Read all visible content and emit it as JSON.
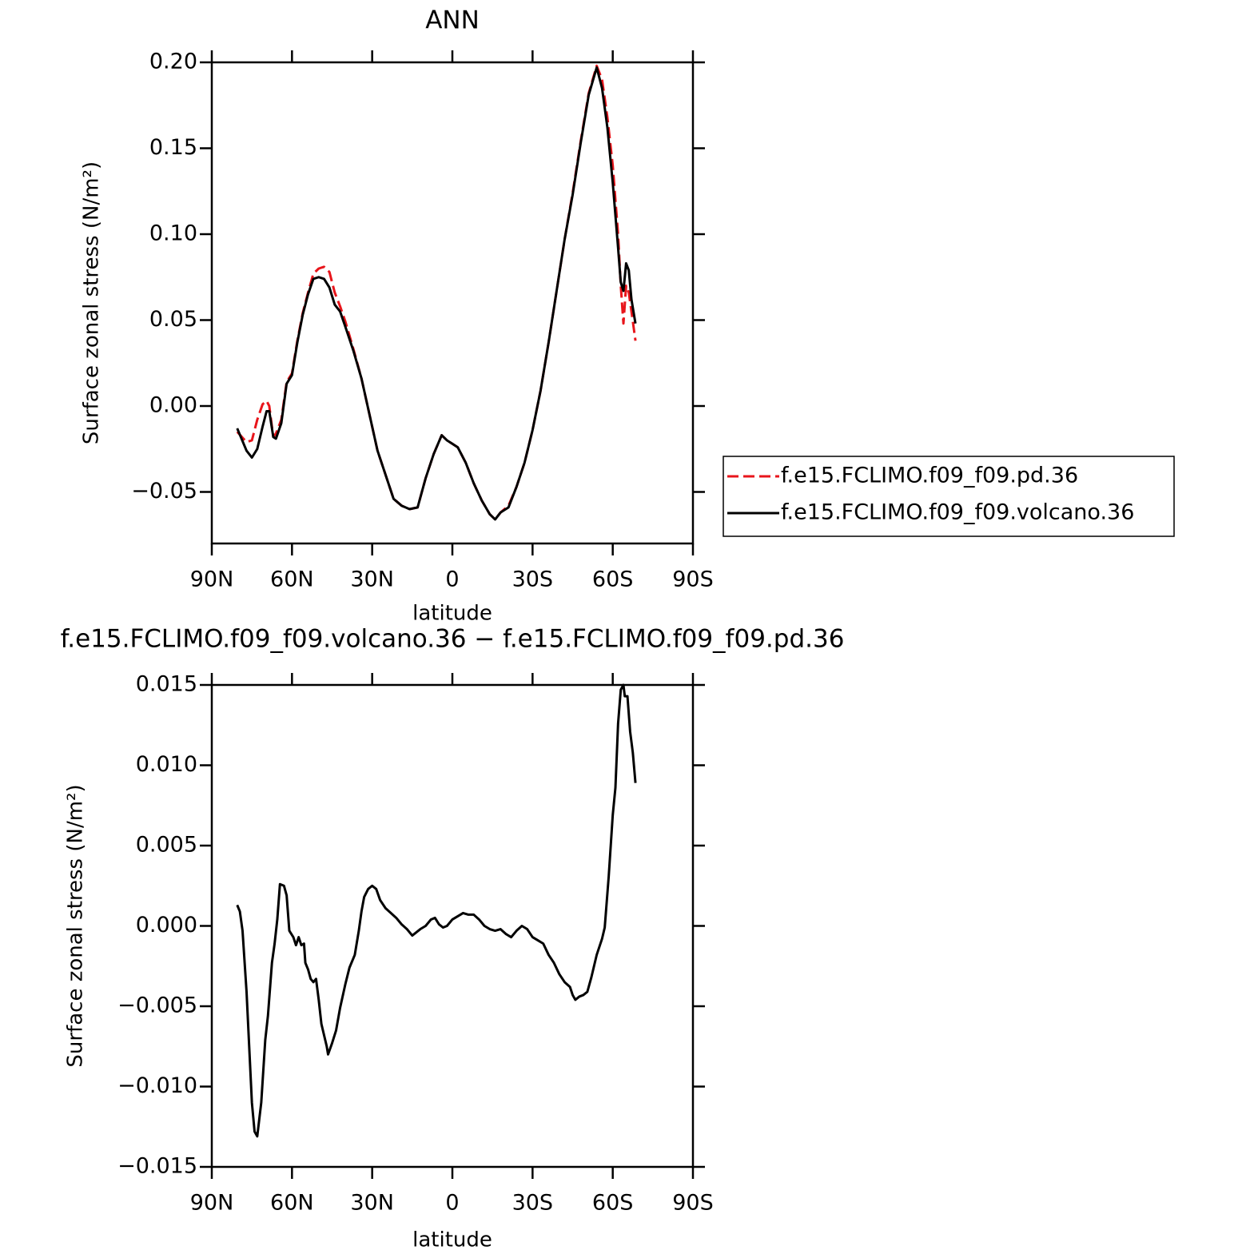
{
  "chart_data": [
    {
      "type": "line",
      "title": "ANN",
      "x_label": "latitude",
      "y_label": "Surface zonal stress (N/m²)",
      "x": [
        80.5,
        77,
        75,
        73,
        71,
        69.5,
        68.5,
        67,
        66,
        64,
        62,
        60,
        58,
        56,
        54,
        52,
        50,
        48,
        46,
        44,
        42,
        40,
        37,
        34,
        31,
        28,
        25,
        22,
        19,
        16,
        13,
        10,
        7,
        4,
        2,
        0,
        -2,
        -5,
        -8,
        -11,
        -14,
        -16,
        -18,
        -21,
        -24,
        -27,
        -30,
        -33,
        -36,
        -39,
        -42,
        -45,
        -48,
        -51,
        -54,
        -56,
        -58,
        -60,
        -62,
        -63,
        -64,
        -65,
        -66,
        -67,
        -68.5
      ],
      "series": [
        {
          "name": "f.e15.FCLIMO.f09_f09.pd.36",
          "color": "#e8151b",
          "style": "dashed",
          "values": [
            -0.015,
            -0.021,
            -0.02,
            -0.008,
            0.001,
            0.003,
            0.0,
            -0.018,
            -0.016,
            -0.008,
            0.014,
            0.019,
            0.038,
            0.054,
            0.066,
            0.077,
            0.08,
            0.081,
            0.078,
            0.066,
            0.058,
            0.049,
            0.033,
            0.016,
            -0.005,
            -0.026,
            -0.04,
            -0.054,
            -0.058,
            -0.06,
            -0.059,
            -0.042,
            -0.028,
            -0.017,
            -0.02,
            -0.022,
            -0.024,
            -0.033,
            -0.045,
            -0.055,
            -0.063,
            -0.066,
            -0.062,
            -0.058,
            -0.047,
            -0.033,
            -0.014,
            0.009,
            0.037,
            0.067,
            0.097,
            0.124,
            0.154,
            0.182,
            0.198,
            0.19,
            0.168,
            0.14,
            0.1,
            0.07,
            0.048,
            0.07,
            0.066,
            0.055,
            0.038
          ]
        },
        {
          "name": "f.e15.FCLIMO.f09_f09.volcano.36",
          "color": "#000000",
          "style": "solid",
          "values": [
            -0.013,
            -0.026,
            -0.03,
            -0.025,
            -0.012,
            -0.003,
            -0.003,
            -0.018,
            -0.019,
            -0.01,
            0.013,
            0.018,
            0.037,
            0.053,
            0.065,
            0.074,
            0.075,
            0.074,
            0.069,
            0.059,
            0.055,
            0.046,
            0.032,
            0.016,
            -0.005,
            -0.026,
            -0.04,
            -0.054,
            -0.058,
            -0.06,
            -0.059,
            -0.042,
            -0.028,
            -0.017,
            -0.02,
            -0.022,
            -0.024,
            -0.033,
            -0.045,
            -0.055,
            -0.063,
            -0.066,
            -0.062,
            -0.059,
            -0.047,
            -0.033,
            -0.014,
            0.009,
            0.037,
            0.067,
            0.097,
            0.123,
            0.153,
            0.181,
            0.197,
            0.185,
            0.162,
            0.13,
            0.092,
            0.072,
            0.067,
            0.083,
            0.079,
            0.062,
            0.048
          ]
        }
      ],
      "xlim": [
        90,
        -90
      ],
      "xticks": [
        {
          "value": 90,
          "label": "90N"
        },
        {
          "value": 60,
          "label": "60N"
        },
        {
          "value": 30,
          "label": "30N"
        },
        0,
        {
          "value": -30,
          "label": "30S"
        },
        {
          "value": -60,
          "label": "60S"
        },
        {
          "value": -90,
          "label": "90S"
        }
      ],
      "ylim": [
        -0.08,
        0.2
      ],
      "yticks": [
        {
          "value": 0.2,
          "label": "0.20"
        },
        {
          "value": 0.15,
          "label": "0.15"
        },
        {
          "value": 0.1,
          "label": "0.10"
        },
        {
          "value": 0.05,
          "label": "0.05"
        },
        {
          "value": 0,
          "label": "0.00"
        },
        {
          "value": -0.05,
          "label": "−0.05"
        }
      ],
      "legend": "right"
    },
    {
      "type": "line",
      "title": "f.e15.FCLIMO.f09_f09.volcano.36 − f.e15.FCLIMO.f09_f09.pd.36",
      "x_label": "latitude",
      "y_label": "Surface zonal stress (N/m²)",
      "x": [
        80.5,
        79.5,
        78.5,
        77,
        75,
        74,
        73,
        71.5,
        70,
        69,
        67.5,
        66.5,
        65.5,
        64.5,
        63,
        62,
        61,
        59.5,
        58.5,
        57.5,
        56.5,
        55.5,
        55,
        54,
        53,
        52,
        51,
        50,
        49,
        47,
        46.5,
        45,
        43.5,
        42,
        40,
        38.5,
        36.5,
        35,
        34,
        33,
        31.5,
        30,
        28.5,
        27,
        25,
        23,
        21,
        19,
        17,
        15,
        13.5,
        12,
        10,
        8,
        6.5,
        5,
        3.5,
        2,
        0,
        -2,
        -4,
        -6,
        -8,
        -10,
        -12,
        -14,
        -16,
        -18,
        -20,
        -22,
        -24,
        -26,
        -28,
        -30,
        -32,
        -34,
        -36,
        -38,
        -40,
        -42,
        -44,
        -45,
        -46,
        -47.5,
        -49,
        -50.5,
        -52,
        -54,
        -56,
        -57,
        -58.5,
        -60,
        -61,
        -62,
        -63,
        -64,
        -64.5,
        -65.5,
        -66.5,
        -67.5,
        -68.5
      ],
      "series": [
        {
          "color": "#000000",
          "style": "solid",
          "values": [
            0.0013,
            0.0009,
            -0.0003,
            -0.0041,
            -0.011,
            -0.0128,
            -0.0131,
            -0.011,
            -0.0071,
            -0.0056,
            -0.0023,
            -0.0011,
            0.0004,
            0.0026,
            0.0025,
            0.0019,
            -0.0003,
            -0.0007,
            -0.0012,
            -0.0007,
            -0.0012,
            -0.0011,
            -0.0023,
            -0.0027,
            -0.0033,
            -0.0035,
            -0.0033,
            -0.0046,
            -0.0061,
            -0.0075,
            -0.008,
            -0.0073,
            -0.0065,
            -0.0051,
            -0.0036,
            -0.0026,
            -0.0018,
            -0.0003,
            0.0009,
            0.0018,
            0.0023,
            0.0025,
            0.0023,
            0.0016,
            0.0011,
            0.0008,
            0.0005,
            0.0001,
            -0.0002,
            -0.0006,
            -0.0004,
            -0.0002,
            0,
            0.0004,
            0.0005,
            0.0001,
            -0.0001,
            0,
            0.0004,
            0.0006,
            0.0008,
            0.0007,
            0.0007,
            0.0004,
            0,
            -0.0002,
            -0.0003,
            -0.0002,
            -0.0005,
            -0.0007,
            -0.0003,
            0,
            -0.0002,
            -0.0007,
            -0.0009,
            -0.0011,
            -0.0018,
            -0.0023,
            -0.003,
            -0.0035,
            -0.0038,
            -0.0043,
            -0.0046,
            -0.0044,
            -0.0043,
            -0.0041,
            -0.0032,
            -0.0018,
            -0.0008,
            -0.0001,
            0.0031,
            0.0069,
            0.0086,
            0.0126,
            0.0147,
            0.015,
            0.0143,
            0.0143,
            0.0121,
            0.0108,
            0.0089
          ]
        }
      ],
      "xlim": [
        90,
        -90
      ],
      "xticks": [
        {
          "value": 90,
          "label": "90N"
        },
        {
          "value": 60,
          "label": "60N"
        },
        {
          "value": 30,
          "label": "30N"
        },
        0,
        {
          "value": -30,
          "label": "30S"
        },
        {
          "value": -60,
          "label": "60S"
        },
        {
          "value": -90,
          "label": "90S"
        }
      ],
      "ylim": [
        -0.015,
        0.015
      ],
      "yticks": [
        {
          "value": 0.015,
          "label": "0.015"
        },
        {
          "value": 0.01,
          "label": "0.010"
        },
        {
          "value": 0.005,
          "label": "0.005"
        },
        {
          "value": 0,
          "label": "0.000"
        },
        {
          "value": -0.005,
          "label": "−0.005"
        },
        {
          "value": -0.01,
          "label": "−0.010"
        },
        {
          "value": -0.015,
          "label": "−0.015"
        }
      ]
    }
  ]
}
